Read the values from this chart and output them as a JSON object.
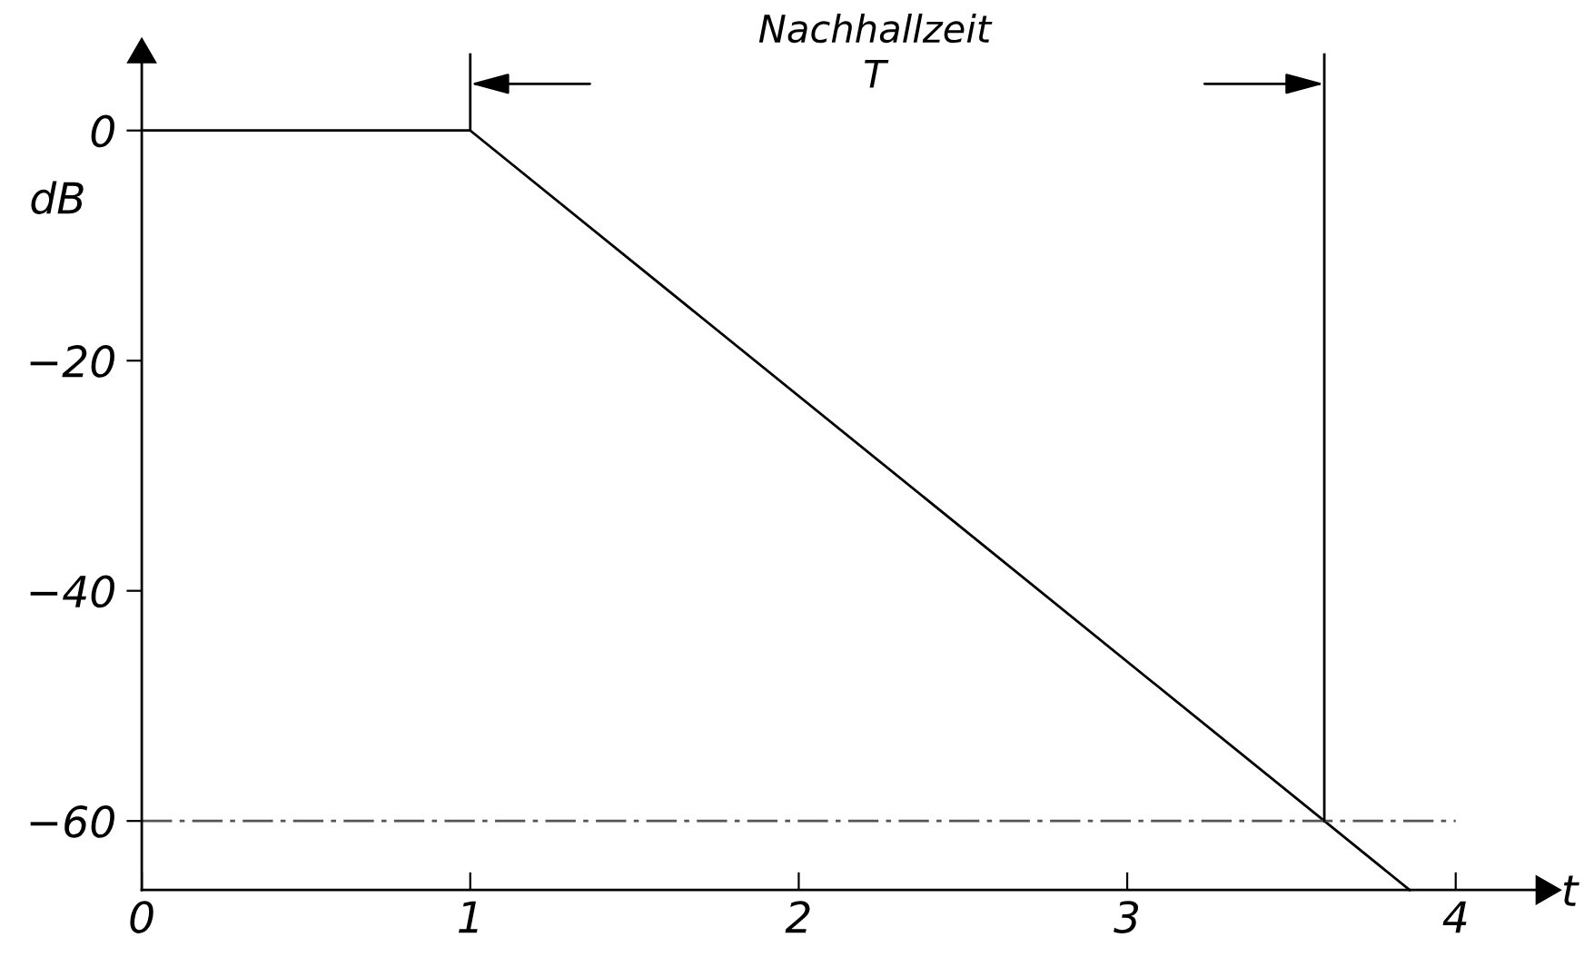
{
  "chart_data": {
    "type": "line",
    "xlabel": "t",
    "ylabel": "dB",
    "annotations": [
      "Nachhallzeit\nT"
    ],
    "x": [
      0,
      1,
      3.6,
      3.86
    ],
    "series": [
      {
        "color": "#000000",
        "values": [
          0,
          0,
          -60,
          -66
        ]
      }
    ],
    "xlim": [
      0,
      4.27
    ],
    "ylim": [
      -66,
      6.6
    ],
    "xticks": [
      0,
      1,
      2,
      3,
      4
    ],
    "yticks": [
      0,
      -20,
      -40,
      -60
    ],
    "ref_lines": [
      {
        "axis": "y",
        "value": -60,
        "color": "#555555",
        "line_style": "dashdot"
      },
      {
        "axis": "x",
        "value": 1,
        "color": "#000000",
        "line_style": "solid"
      },
      {
        "axis": "x",
        "value": 3.6,
        "color": "#000000",
        "line_style": "solid"
      }
    ],
    "grid": false,
    "legend": false,
    "marker": "none",
    "line_style": "solid"
  }
}
